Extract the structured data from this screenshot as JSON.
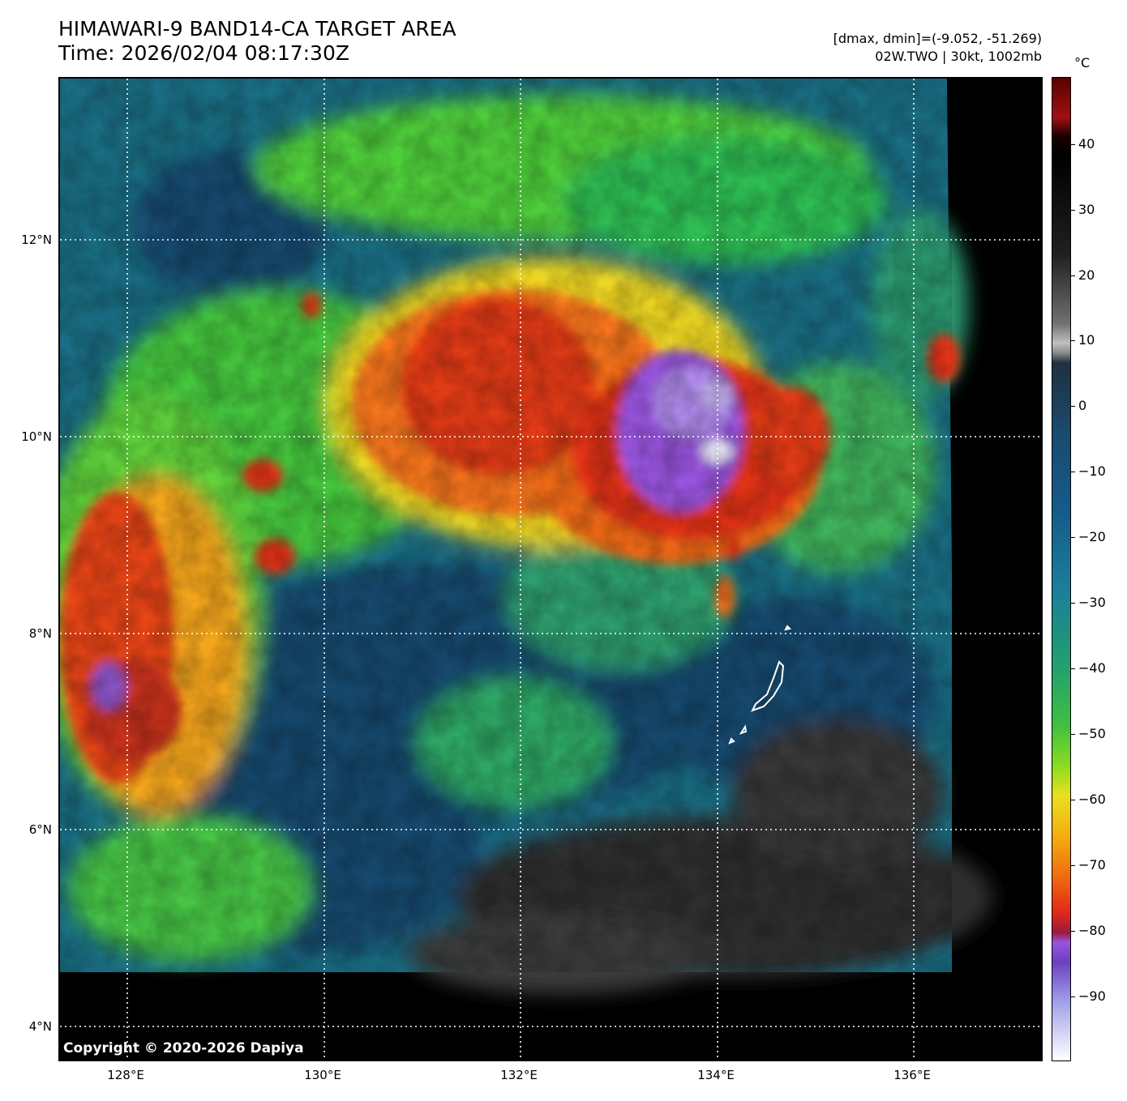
{
  "header": {
    "title": "HIMAWARI-9 BAND14-CA TARGET AREA",
    "time": "Time: 2026/02/04 08:17:30Z",
    "dmax_dmin": "[dmax, dmin]=(-9.052, -51.269)",
    "storm": "02W.TWO | 30kt, 1002mb"
  },
  "map": {
    "lat_labels": [
      "12°N",
      "10°N",
      "8°N",
      "6°N",
      "4°N"
    ],
    "lon_labels": [
      "128°E",
      "130°E",
      "132°E",
      "134°E",
      "136°E"
    ],
    "copyright": "Copyright © 2020-2026 Dapiya"
  },
  "colorbar": {
    "unit": "°C",
    "ticks": [
      "40",
      "30",
      "20",
      "10",
      "0",
      "−10",
      "−20",
      "−30",
      "−40",
      "−50",
      "−60",
      "−70",
      "−80",
      "−90"
    ]
  }
}
